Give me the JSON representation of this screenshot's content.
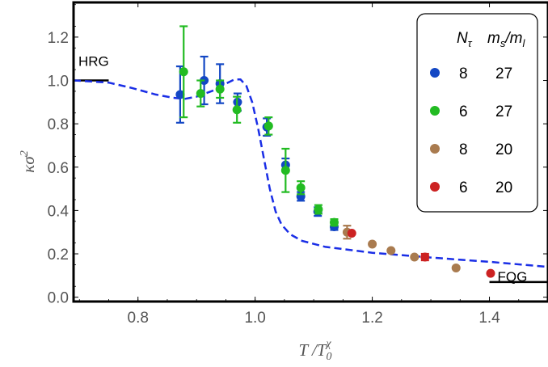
{
  "chart_data": {
    "type": "scatter",
    "title": "",
    "xlabel": "T / T_0^χ",
    "ylabel": "κσ^2",
    "xlim": [
      0.69,
      1.5
    ],
    "ylim": [
      -0.02,
      1.36
    ],
    "xticks": [
      0.8,
      1.0,
      1.2,
      1.4
    ],
    "yticks": [
      0.0,
      0.2,
      0.4,
      0.6,
      0.8,
      1.0,
      1.2
    ],
    "xtick_labels": [
      "0.8",
      "1.0",
      "1.2",
      "1.4"
    ],
    "ytick_labels": [
      "0.0",
      "0.2",
      "0.4",
      "0.6",
      "0.8",
      "1.0",
      "1.2"
    ],
    "legend": {
      "placement": "top-right",
      "header": {
        "n_tau": "N",
        "n_tau_sub": "τ",
        "ratio": "m",
        "ratio_sub1": "s",
        "ratio_slash": "/m",
        "ratio_sub2": "l"
      },
      "rows": [
        {
          "n_tau": "8",
          "ratio": "27",
          "color": "#1347c4"
        },
        {
          "n_tau": "6",
          "ratio": "27",
          "color": "#22bb22"
        },
        {
          "n_tau": "8",
          "ratio": "20",
          "color": "#a97b4f"
        },
        {
          "n_tau": "6",
          "ratio": "20",
          "color": "#cc2222"
        }
      ]
    },
    "series": [
      {
        "color": "#1347c4",
        "points": [
          {
            "x": 0.872,
            "y": 0.935,
            "err": 0.13
          },
          {
            "x": 0.913,
            "y": 1.0,
            "err": 0.11
          },
          {
            "x": 0.94,
            "y": 0.985,
            "err": 0.09
          },
          {
            "x": 0.97,
            "y": 0.9,
            "err": 0.04
          },
          {
            "x": 1.02,
            "y": 0.785,
            "err": 0.04
          },
          {
            "x": 1.052,
            "y": 0.61,
            "err": 0.03
          },
          {
            "x": 1.078,
            "y": 0.465,
            "err": 0.02
          },
          {
            "x": 1.107,
            "y": 0.395,
            "err": 0.02
          },
          {
            "x": 1.135,
            "y": 0.325,
            "err": 0.015
          }
        ]
      },
      {
        "color": "#22bb22",
        "points": [
          {
            "x": 0.878,
            "y": 1.04,
            "err": 0.21
          },
          {
            "x": 0.907,
            "y": 0.94,
            "err": 0.06
          },
          {
            "x": 0.94,
            "y": 0.96,
            "err": 0.04
          },
          {
            "x": 0.969,
            "y": 0.865,
            "err": 0.06
          },
          {
            "x": 1.023,
            "y": 0.79,
            "err": 0.04
          },
          {
            "x": 1.052,
            "y": 0.585,
            "err": 0.1
          },
          {
            "x": 1.078,
            "y": 0.505,
            "err": 0.03
          },
          {
            "x": 1.108,
            "y": 0.405,
            "err": 0.02
          },
          {
            "x": 1.135,
            "y": 0.345,
            "err": 0.015
          }
        ]
      },
      {
        "color": "#a97b4f",
        "points": [
          {
            "x": 1.157,
            "y": 0.3,
            "err": 0.03
          },
          {
            "x": 1.2,
            "y": 0.245,
            "err": 0.0
          },
          {
            "x": 1.232,
            "y": 0.215,
            "err": 0.0
          },
          {
            "x": 1.272,
            "y": 0.185,
            "err": 0.0
          },
          {
            "x": 1.343,
            "y": 0.135,
            "err": 0.0
          }
        ]
      },
      {
        "color": "#cc2222",
        "points": [
          {
            "x": 1.165,
            "y": 0.295,
            "err": 0.0
          },
          {
            "x": 1.29,
            "y": 0.185,
            "err": 0.015
          },
          {
            "x": 1.402,
            "y": 0.11,
            "err": 0.0
          }
        ]
      }
    ],
    "theory_curve": {
      "style": "dashed",
      "color": "#1a2ee6",
      "points": [
        [
          0.69,
          1.0
        ],
        [
          0.75,
          0.99
        ],
        [
          0.79,
          0.965
        ],
        [
          0.83,
          0.935
        ],
        [
          0.86,
          0.92
        ],
        [
          0.88,
          0.915
        ],
        [
          0.9,
          0.925
        ],
        [
          0.93,
          0.955
        ],
        [
          0.95,
          0.985
        ],
        [
          0.965,
          1.005
        ],
        [
          0.975,
          1.005
        ],
        [
          0.985,
          0.975
        ],
        [
          0.995,
          0.9
        ],
        [
          1.005,
          0.78
        ],
        [
          1.015,
          0.64
        ],
        [
          1.025,
          0.5
        ],
        [
          1.035,
          0.395
        ],
        [
          1.045,
          0.335
        ],
        [
          1.06,
          0.29
        ],
        [
          1.08,
          0.26
        ],
        [
          1.12,
          0.232
        ],
        [
          1.2,
          0.205
        ],
        [
          1.3,
          0.183
        ],
        [
          1.4,
          0.163
        ],
        [
          1.5,
          0.14
        ]
      ]
    },
    "reference_lines": [
      {
        "label": "HRG",
        "y": 1.0,
        "x": [
          0.69,
          0.75
        ]
      },
      {
        "label": "FQG",
        "y": 0.07,
        "x": [
          1.4,
          1.5
        ]
      }
    ]
  }
}
